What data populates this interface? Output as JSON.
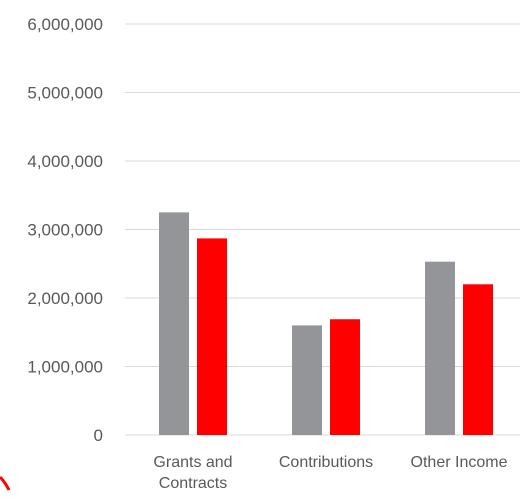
{
  "chart_data": {
    "type": "bar",
    "categories": [
      "Grants and Contracts",
      "Contributions",
      "Other Income"
    ],
    "category_label_lines": [
      [
        "Grants and",
        "Contracts"
      ],
      [
        "Contributions"
      ],
      [
        "Other Income"
      ]
    ],
    "series": [
      {
        "values": [
          3250000,
          1600000,
          2530000
        ],
        "color": "#939598"
      },
      {
        "values": [
          2870000,
          1690000,
          2200000
        ],
        "color": "#ff0000"
      }
    ],
    "yticks": [
      "0",
      "1,000,000",
      "2,000,000",
      "3,000,000",
      "4,000,000",
      "5,000,000",
      "6,000,000"
    ],
    "ylim": [
      0,
      6000000
    ],
    "grid": true,
    "legend": "none",
    "title": "",
    "xlabel": "",
    "ylabel": ""
  },
  "colors": {
    "grid": "#d9d9d9",
    "text": "#595959",
    "corner_accent": "#ff0000"
  }
}
